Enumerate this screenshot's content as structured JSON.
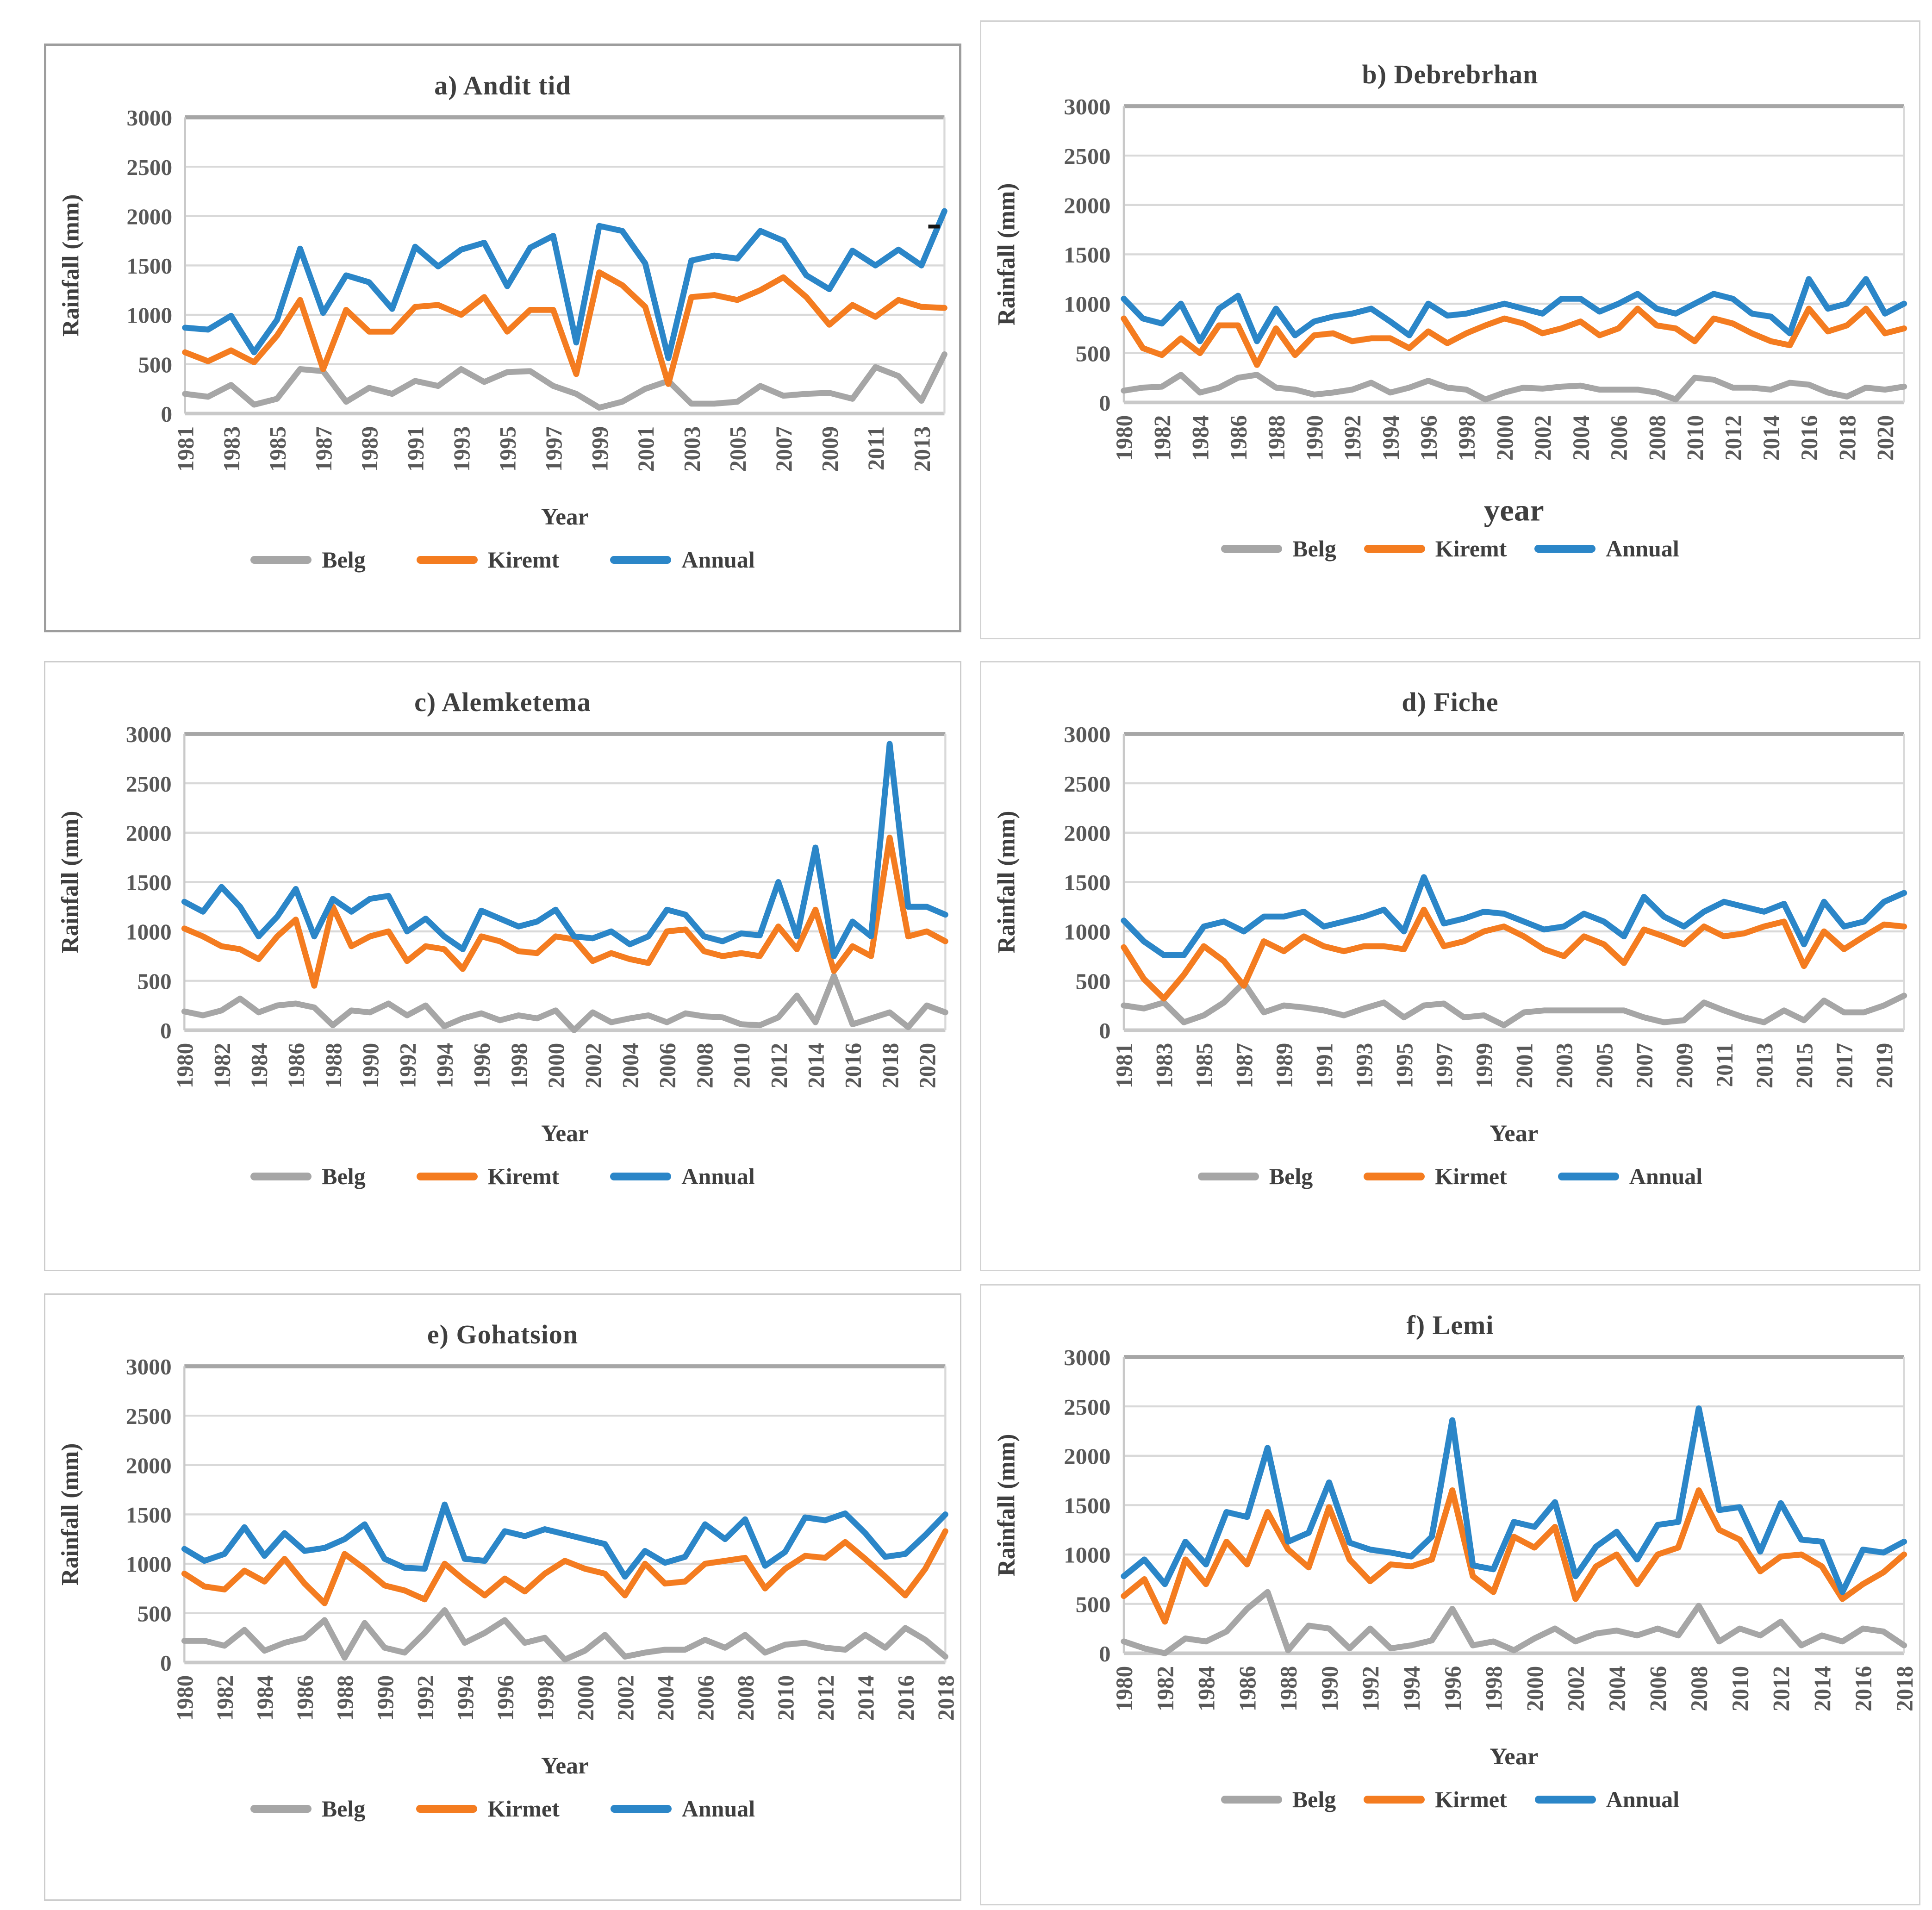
{
  "page": {
    "stray_dash": "-"
  },
  "palette": {
    "belg": "#A6A6A6",
    "kiremt": "#F47C20",
    "annual": "#2B86C8",
    "gridline": "#D9D9D9",
    "grid_top": "#A6A6A6",
    "axis_line": "#C9C9C9",
    "tick_text": "#595959",
    "title_text": "#3F3F3F"
  },
  "chart_data": [
    {
      "label": "a",
      "type": "line",
      "title": "a) Andit tid",
      "ylabel": "Rainfall (mm)",
      "xlabel": "Year",
      "ylim": [
        0,
        3000
      ],
      "ytick_step": 500,
      "grid": true,
      "legend_position": "bottom",
      "x_start": 1981,
      "x_end": 2014,
      "xtick_labels": [
        "1981",
        "1983",
        "1985",
        "1987",
        "1989",
        "1991",
        "1993",
        "1995",
        "1997",
        "1999",
        "2001",
        "2003",
        "2005",
        "2007",
        "2009",
        "2011",
        "2013"
      ],
      "series": [
        {
          "name": "Belg",
          "color_key": "belg",
          "values": [
            200,
            170,
            290,
            90,
            150,
            450,
            430,
            120,
            260,
            200,
            330,
            280,
            450,
            320,
            420,
            430,
            280,
            200,
            60,
            120,
            250,
            330,
            100,
            100,
            120,
            280,
            180,
            200,
            210,
            150,
            470,
            380,
            130,
            600
          ]
        },
        {
          "name": "Kiremt",
          "color_key": "kiremt",
          "values": [
            620,
            530,
            640,
            520,
            790,
            1150,
            450,
            1050,
            830,
            830,
            1080,
            1100,
            1000,
            1180,
            830,
            1050,
            1050,
            400,
            1430,
            1300,
            1080,
            300,
            1180,
            1200,
            1150,
            1250,
            1380,
            1180,
            900,
            1100,
            980,
            1150,
            1080,
            1070
          ]
        },
        {
          "name": "Annual",
          "color_key": "annual",
          "values": [
            870,
            850,
            990,
            620,
            950,
            1670,
            1020,
            1400,
            1330,
            1060,
            1690,
            1490,
            1660,
            1730,
            1290,
            1680,
            1800,
            720,
            1900,
            1850,
            1520,
            560,
            1550,
            1600,
            1570,
            1850,
            1750,
            1400,
            1260,
            1650,
            1500,
            1660,
            1500,
            2050
          ]
        }
      ]
    },
    {
      "label": "b",
      "type": "line",
      "title": "b) Debrebrhan",
      "ylabel": "Rainfall (mm)",
      "xlabel": "year",
      "ylim": [
        0,
        3000
      ],
      "ytick_step": 500,
      "grid": true,
      "legend_position": "bottom",
      "x_start": 1980,
      "x_end": 2021,
      "xtick_labels": [
        "1980",
        "1982",
        "1984",
        "1986",
        "1988",
        "1990",
        "1992",
        "1994",
        "1996",
        "1998",
        "2000",
        "2002",
        "2004",
        "2006",
        "2008",
        "2010",
        "2012",
        "2014",
        "2016",
        "2018",
        "2020"
      ],
      "series": [
        {
          "name": "Belg",
          "color_key": "belg",
          "values": [
            120,
            150,
            160,
            280,
            100,
            150,
            250,
            280,
            150,
            130,
            80,
            100,
            130,
            200,
            100,
            150,
            220,
            150,
            130,
            30,
            100,
            150,
            140,
            160,
            170,
            130,
            130,
            130,
            100,
            30,
            250,
            230,
            150,
            150,
            130,
            200,
            180,
            100,
            60,
            150,
            130,
            160
          ]
        },
        {
          "name": "Kiremt",
          "color_key": "kiremt",
          "values": [
            850,
            550,
            480,
            650,
            500,
            780,
            780,
            380,
            750,
            480,
            680,
            700,
            620,
            650,
            650,
            550,
            720,
            600,
            700,
            780,
            850,
            800,
            700,
            750,
            820,
            680,
            750,
            950,
            780,
            750,
            620,
            850,
            800,
            700,
            620,
            580,
            950,
            720,
            780,
            950,
            700,
            750
          ]
        },
        {
          "name": "Annual",
          "color_key": "annual",
          "values": [
            1050,
            850,
            800,
            1000,
            620,
            950,
            1080,
            620,
            950,
            680,
            820,
            870,
            900,
            950,
            820,
            680,
            1000,
            880,
            900,
            950,
            1000,
            950,
            900,
            1050,
            1050,
            920,
            1000,
            1100,
            950,
            900,
            1000,
            1100,
            1050,
            900,
            870,
            700,
            1250,
            950,
            1000,
            1250,
            900,
            1000
          ]
        }
      ]
    },
    {
      "label": "c",
      "type": "line",
      "title": "c) Alemketema",
      "ylabel": "Rainfall (mm)",
      "xlabel": "Year",
      "ylim": [
        0,
        3000
      ],
      "ytick_step": 500,
      "grid": true,
      "legend_position": "bottom",
      "x_start": 1980,
      "x_end": 2021,
      "xtick_labels": [
        "1980",
        "1982",
        "1984",
        "1986",
        "1988",
        "1990",
        "1992",
        "1994",
        "1996",
        "1998",
        "2000",
        "2002",
        "2004",
        "2006",
        "2008",
        "2010",
        "2012",
        "2014",
        "2016",
        "2018",
        "2020"
      ],
      "series": [
        {
          "name": "Belg",
          "color_key": "belg",
          "values": [
            190,
            150,
            200,
            320,
            180,
            250,
            270,
            230,
            50,
            200,
            180,
            270,
            150,
            250,
            40,
            120,
            170,
            100,
            150,
            120,
            200,
            0,
            180,
            80,
            120,
            150,
            80,
            170,
            140,
            130,
            60,
            50,
            130,
            350,
            80,
            550,
            60,
            120,
            180,
            30,
            250,
            180
          ]
        },
        {
          "name": "Kiremt",
          "color_key": "kiremt",
          "values": [
            1030,
            950,
            850,
            820,
            720,
            950,
            1120,
            450,
            1250,
            850,
            950,
            1000,
            700,
            850,
            820,
            620,
            950,
            900,
            800,
            780,
            950,
            920,
            700,
            780,
            720,
            680,
            1000,
            1020,
            800,
            750,
            780,
            750,
            1050,
            820,
            1220,
            600,
            850,
            750,
            1950,
            950,
            1000,
            900
          ]
        },
        {
          "name": "Annual",
          "color_key": "annual",
          "values": [
            1300,
            1200,
            1450,
            1250,
            950,
            1150,
            1430,
            950,
            1330,
            1200,
            1330,
            1360,
            1000,
            1130,
            950,
            820,
            1210,
            1130,
            1050,
            1100,
            1220,
            950,
            930,
            1000,
            870,
            950,
            1220,
            1170,
            950,
            900,
            980,
            960,
            1500,
            950,
            1850,
            750,
            1100,
            950,
            2900,
            1250,
            1250,
            1170
          ]
        }
      ]
    },
    {
      "label": "d",
      "type": "line",
      "title": "d) Fiche",
      "ylabel": "Rainfall (mm)",
      "xlabel": "Year",
      "ylim": [
        0,
        3000
      ],
      "ytick_step": 500,
      "grid": true,
      "legend_position": "bottom",
      "x_start": 1981,
      "x_end": 2020,
      "xtick_labels": [
        "1981",
        "1983",
        "1985",
        "1987",
        "1989",
        "1991",
        "1993",
        "1995",
        "1997",
        "1999",
        "2001",
        "2003",
        "2005",
        "2007",
        "2009",
        "2011",
        "2013",
        "2015",
        "2017",
        "2019"
      ],
      "series": [
        {
          "name": "Belg",
          "color_key": "belg",
          "values": [
            250,
            220,
            280,
            80,
            150,
            280,
            480,
            180,
            250,
            230,
            200,
            150,
            220,
            280,
            130,
            250,
            270,
            130,
            150,
            50,
            180,
            200,
            200,
            200,
            200,
            200,
            130,
            80,
            100,
            280,
            200,
            130,
            80,
            200,
            100,
            300,
            180,
            180,
            250,
            350
          ]
        },
        {
          "name": "Kirmet",
          "color_key": "kiremt",
          "values": [
            840,
            520,
            320,
            560,
            850,
            700,
            450,
            900,
            800,
            950,
            850,
            800,
            850,
            850,
            820,
            1220,
            850,
            900,
            1000,
            1050,
            950,
            820,
            750,
            950,
            870,
            680,
            1020,
            950,
            870,
            1050,
            950,
            980,
            1050,
            1100,
            650,
            1000,
            820,
            950,
            1070,
            1050
          ]
        },
        {
          "name": "Annual",
          "color_key": "annual",
          "values": [
            1110,
            900,
            760,
            760,
            1050,
            1100,
            1000,
            1150,
            1150,
            1200,
            1050,
            1100,
            1150,
            1220,
            1000,
            1550,
            1080,
            1130,
            1200,
            1180,
            1100,
            1020,
            1050,
            1180,
            1100,
            950,
            1350,
            1150,
            1050,
            1200,
            1300,
            1250,
            1200,
            1280,
            870,
            1300,
            1050,
            1100,
            1300,
            1390
          ]
        }
      ]
    },
    {
      "label": "e",
      "type": "line",
      "title": "e) Gohatsion",
      "ylabel": "Rainfall (mm)",
      "xlabel": "Year",
      "ylim": [
        0,
        3000
      ],
      "ytick_step": 500,
      "grid": true,
      "legend_position": "bottom",
      "x_start": 1980,
      "x_end": 2018,
      "xtick_labels": [
        "1980",
        "1982",
        "1984",
        "1986",
        "1988",
        "1990",
        "1992",
        "1994",
        "1996",
        "1998",
        "2000",
        "2002",
        "2004",
        "2006",
        "2008",
        "2010",
        "2012",
        "2014",
        "2016",
        "2018"
      ],
      "series": [
        {
          "name": "Belg",
          "color_key": "belg",
          "values": [
            220,
            220,
            170,
            330,
            120,
            200,
            250,
            430,
            50,
            400,
            150,
            100,
            300,
            530,
            200,
            300,
            430,
            200,
            250,
            30,
            120,
            280,
            60,
            100,
            130,
            130,
            230,
            150,
            280,
            100,
            180,
            200,
            150,
            130,
            280,
            150,
            350,
            230,
            60
          ]
        },
        {
          "name": "Kirmet",
          "color_key": "kiremt",
          "values": [
            900,
            770,
            740,
            930,
            820,
            1050,
            800,
            600,
            1100,
            950,
            780,
            730,
            640,
            1000,
            830,
            680,
            850,
            720,
            900,
            1030,
            950,
            900,
            680,
            1000,
            800,
            820,
            1000,
            1030,
            1060,
            750,
            950,
            1080,
            1060,
            1220,
            1050,
            870,
            680,
            950,
            1330
          ]
        },
        {
          "name": "Annual",
          "color_key": "annual",
          "values": [
            1150,
            1030,
            1100,
            1370,
            1080,
            1310,
            1130,
            1160,
            1250,
            1400,
            1050,
            960,
            950,
            1600,
            1050,
            1030,
            1330,
            1280,
            1350,
            1300,
            1250,
            1200,
            870,
            1130,
            1010,
            1070,
            1400,
            1250,
            1450,
            980,
            1120,
            1470,
            1440,
            1510,
            1310,
            1070,
            1100,
            1290,
            1500
          ]
        }
      ]
    },
    {
      "label": "f",
      "type": "line",
      "title": "f) Lemi",
      "ylabel": "Rainfall (mm)",
      "xlabel": "Year",
      "ylim": [
        0,
        3000
      ],
      "ytick_step": 500,
      "grid": true,
      "legend_position": "bottom",
      "x_start": 1980,
      "x_end": 2018,
      "xtick_labels": [
        "1980",
        "1982",
        "1984",
        "1986",
        "1988",
        "1990",
        "1992",
        "1994",
        "1996",
        "1998",
        "2000",
        "2002",
        "2004",
        "2006",
        "2008",
        "2010",
        "2012",
        "2014",
        "2016",
        "2018"
      ],
      "series": [
        {
          "name": "Belg",
          "color_key": "belg",
          "values": [
            120,
            50,
            0,
            150,
            120,
            220,
            450,
            620,
            30,
            280,
            250,
            50,
            250,
            50,
            80,
            130,
            450,
            80,
            120,
            30,
            150,
            250,
            120,
            200,
            230,
            180,
            250,
            180,
            480,
            120,
            250,
            180,
            320,
            80,
            180,
            120,
            250,
            220,
            80
          ]
        },
        {
          "name": "Kirmet",
          "color_key": "kiremt",
          "values": [
            580,
            750,
            320,
            950,
            700,
            1130,
            900,
            1430,
            1050,
            870,
            1480,
            950,
            730,
            900,
            880,
            950,
            1650,
            780,
            620,
            1180,
            1070,
            1280,
            550,
            880,
            1000,
            700,
            1000,
            1070,
            1650,
            1250,
            1150,
            830,
            980,
            1000,
            880,
            550,
            700,
            820,
            1000
          ]
        },
        {
          "name": "Annual",
          "color_key": "annual",
          "values": [
            780,
            950,
            700,
            1130,
            900,
            1430,
            1380,
            2080,
            1130,
            1220,
            1730,
            1120,
            1050,
            1020,
            980,
            1180,
            2360,
            890,
            850,
            1330,
            1280,
            1530,
            780,
            1080,
            1230,
            950,
            1300,
            1330,
            2480,
            1450,
            1480,
            1030,
            1520,
            1150,
            1130,
            620,
            1050,
            1020,
            1130
          ]
        }
      ]
    }
  ]
}
